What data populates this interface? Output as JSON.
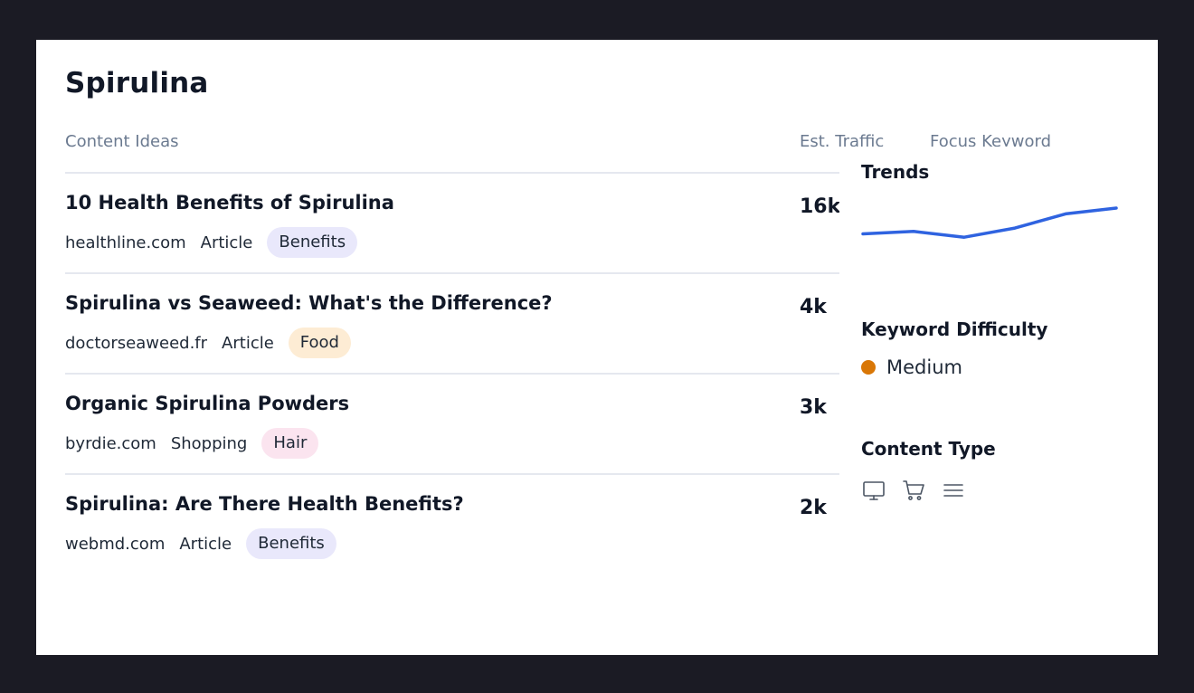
{
  "page": {
    "title": "Spirulina"
  },
  "table": {
    "headers": {
      "ideas": "Content Ideas",
      "traffic": "Est. Traffic",
      "keyword": "Focus Keyword"
    },
    "rows": [
      {
        "title": "10 Health Benefits of Spirulina",
        "domain": "healthline.com",
        "type": "Article",
        "tag": "Benefits",
        "tag_bg": "#e9e8fb",
        "tag_color": "#1f2937",
        "traffic": "16k"
      },
      {
        "title": "Spirulina vs Seaweed: What's the Difference?",
        "domain": "doctorseaweed.fr",
        "type": "Article",
        "tag": "Food",
        "tag_bg": "#fdecd4",
        "tag_color": "#1f2937",
        "traffic": "4k"
      },
      {
        "title": "Organic Spirulina Powders",
        "domain": "byrdie.com",
        "type": "Shopping",
        "tag": "Hair",
        "tag_bg": "#fbe4ef",
        "tag_color": "#1f2937",
        "traffic": "3k"
      },
      {
        "title": "Spirulina: Are There Health Benefits?",
        "domain": "webmd.com",
        "type": "Article",
        "tag": "Benefits",
        "tag_bg": "#e9e8fb",
        "tag_color": "#1f2937",
        "traffic": "2k"
      }
    ]
  },
  "side_panel": {
    "trends_title": "Trends",
    "trend_color": "#2f63e0",
    "trend_values": [
      0.38,
      0.44,
      0.3,
      0.52,
      0.86,
      1.0
    ],
    "keyword_difficulty_title": "Keyword Difficulty",
    "keyword_difficulty_value": "Medium",
    "keyword_difficulty_color": "#d97706",
    "content_type_title": "Content Type",
    "content_type_icons": [
      "monitor-icon",
      "shopping-cart-icon",
      "list-icon"
    ]
  }
}
